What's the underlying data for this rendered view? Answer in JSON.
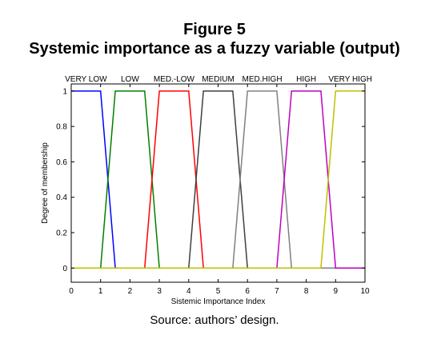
{
  "figure": {
    "number": "Figure 5",
    "title": "Systemic importance as a fuzzy variable (output)",
    "source": "Source: authors’ design."
  },
  "chart_data": {
    "type": "line",
    "xlabel": "Sistemic Importance Index",
    "ylabel": "Degree of membership",
    "xlim": [
      0,
      10
    ],
    "ylim": [
      -0.08,
      1.04
    ],
    "xticks": [
      "0",
      "1",
      "2",
      "3",
      "4",
      "5",
      "6",
      "7",
      "8",
      "9",
      "10"
    ],
    "yticks": [
      {
        "v": 0,
        "label": "0"
      },
      {
        "v": 0.2,
        "label": "0.2"
      },
      {
        "v": 0.4,
        "label": "0.4"
      },
      {
        "v": 0.6,
        "label": "0.6"
      },
      {
        "v": 0.8,
        "label": "0.8"
      },
      {
        "v": 1,
        "label": "1"
      }
    ],
    "grid": false,
    "series": [
      {
        "name": "VERY LOW",
        "color": "#0000ff",
        "x": [
          0,
          1,
          1.5,
          10
        ],
        "y": [
          1,
          1,
          0,
          0
        ]
      },
      {
        "name": "LOW",
        "color": "#007f00",
        "x": [
          0,
          1,
          1.5,
          2.5,
          3,
          10
        ],
        "y": [
          0,
          0,
          1,
          1,
          0,
          0
        ]
      },
      {
        "name": "MED.-LOW",
        "color": "#ff0000",
        "x": [
          0,
          2.5,
          3,
          4,
          4.5,
          10
        ],
        "y": [
          0,
          0,
          1,
          1,
          0,
          0
        ]
      },
      {
        "name": "MEDIUM",
        "color": "#3f3f3f",
        "x": [
          0,
          4,
          4.5,
          5.5,
          6,
          10
        ],
        "y": [
          0,
          0,
          1,
          1,
          0,
          0
        ]
      },
      {
        "name": "MED.HIGH",
        "color": "#808080",
        "x": [
          0,
          5.5,
          6,
          7,
          7.5,
          10
        ],
        "y": [
          0,
          0,
          1,
          1,
          0,
          0
        ]
      },
      {
        "name": "HIGH",
        "color": "#bf00bf",
        "x": [
          0,
          7,
          7.5,
          8.5,
          9,
          10
        ],
        "y": [
          0,
          0,
          1,
          1,
          0,
          0
        ]
      },
      {
        "name": "VERY HIGH",
        "color": "#bfbf00",
        "x": [
          0,
          8.5,
          9,
          10
        ],
        "y": [
          0,
          0,
          1,
          1
        ]
      }
    ],
    "labels": [
      {
        "text": "VERY LOW",
        "x": 0.5
      },
      {
        "text": "LOW",
        "x": 2
      },
      {
        "text": "MED.-LOW",
        "x": 3.5
      },
      {
        "text": "MEDIUM",
        "x": 5
      },
      {
        "text": "MED.HIGH",
        "x": 6.5
      },
      {
        "text": "HIGH",
        "x": 8
      },
      {
        "text": "VERY HIGH",
        "x": 9.5
      }
    ]
  }
}
